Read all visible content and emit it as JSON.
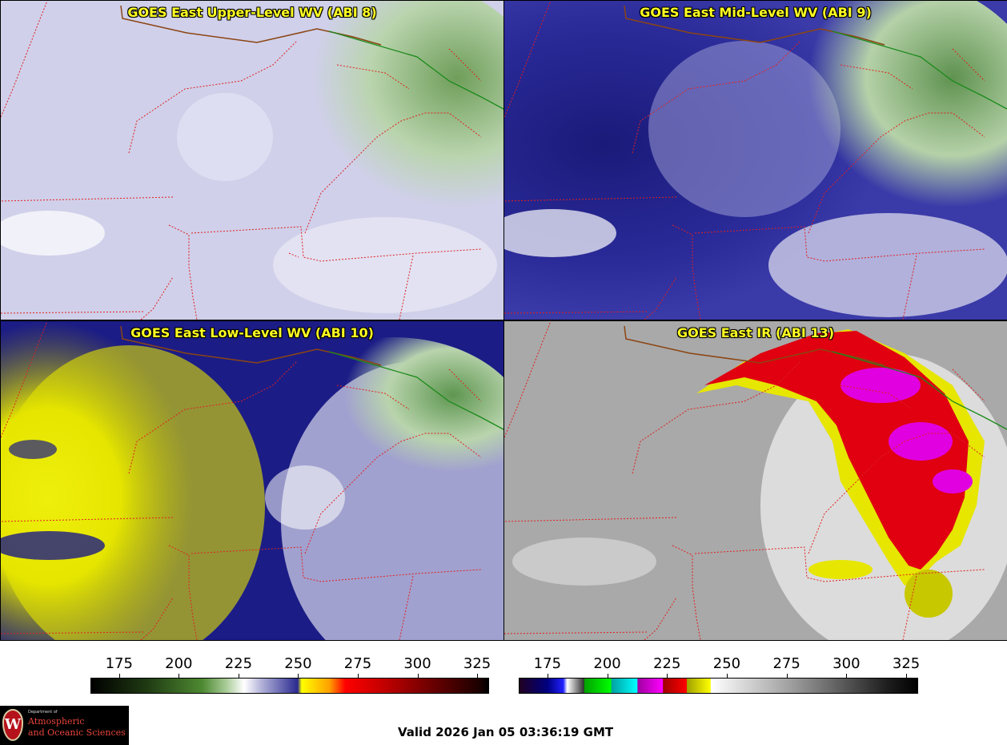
{
  "panels": [
    {
      "title": "GOES East Upper-Level WV (ABI 8)",
      "palette": "wv_upper"
    },
    {
      "title": "GOES East Mid-Level WV (ABI 9)",
      "palette": "wv_mid"
    },
    {
      "title": "GOES East Low-Level WV (ABI 10)",
      "palette": "wv_low"
    },
    {
      "title": "GOES East IR (ABI 13)",
      "palette": "ir"
    }
  ],
  "colorbars": {
    "wv": {
      "ticks": [
        "175",
        "200",
        "225",
        "250",
        "275",
        "300",
        "325"
      ],
      "range": [
        163,
        330
      ]
    },
    "ir": {
      "ticks": [
        "175",
        "200",
        "225",
        "250",
        "275",
        "300",
        "325"
      ],
      "range": [
        163,
        330
      ]
    }
  },
  "logo": {
    "dept_label": "Department of",
    "name_line1": "Atmospheric",
    "name_line2": "and Oceanic Sciences",
    "crest_letter": "W"
  },
  "valid_time": "Valid 2026 Jan 05 03:36:19 GMT",
  "colors": {
    "state_border": "#e02020",
    "intl_border": "#8b4513",
    "lake_border": "#1a8a1a",
    "title_text": "#ffff22"
  }
}
